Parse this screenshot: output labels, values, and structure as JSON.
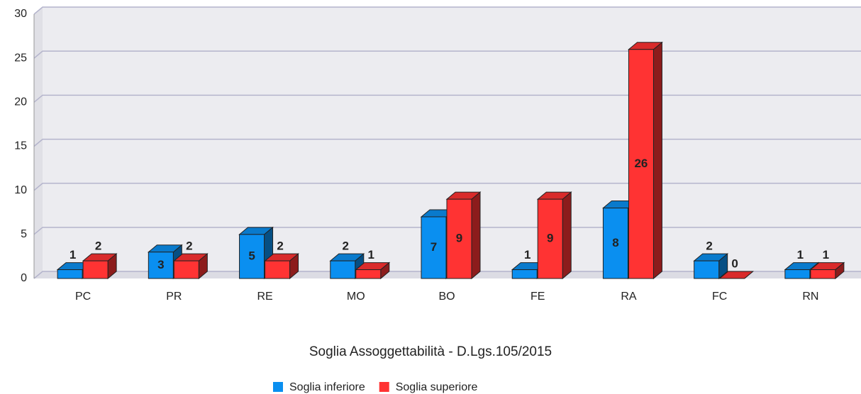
{
  "chart_data": {
    "type": "bar3d",
    "title": "Soglia Assoggettabilità - D.Lgs.105/2015",
    "categories": [
      "PC",
      "PR",
      "RE",
      "MO",
      "BO",
      "FE",
      "RA",
      "FC",
      "RN"
    ],
    "series": [
      {
        "name": "Soglia inferiore",
        "color": "#0a8ff0",
        "values": [
          1,
          3,
          5,
          2,
          7,
          1,
          8,
          2,
          1
        ]
      },
      {
        "name": "Soglia superiore",
        "color": "#ff3333",
        "values": [
          2,
          2,
          2,
          1,
          9,
          9,
          26,
          0,
          1
        ]
      }
    ],
    "ylim": [
      0,
      30
    ],
    "yticks": [
      0,
      5,
      10,
      15,
      20,
      25,
      30
    ],
    "grid": true,
    "legend": "bottom"
  }
}
